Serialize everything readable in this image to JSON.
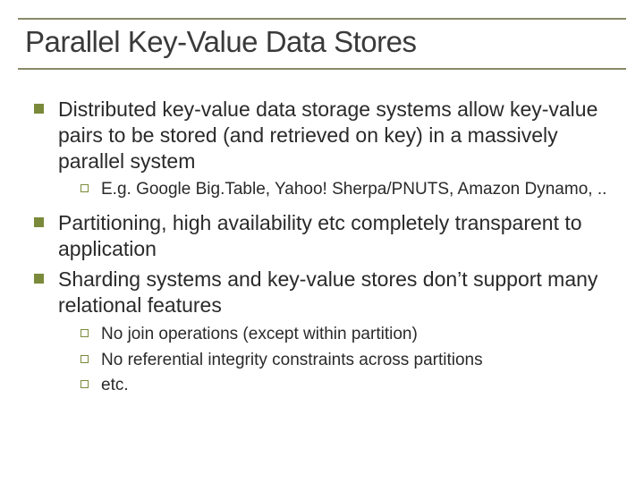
{
  "colors": {
    "text": "#2a2a2a",
    "title": "#3a3a3a",
    "bullet": "#7a8a3a",
    "border": "#8a8a6a",
    "background": "#ffffff"
  },
  "typography": {
    "title_fontsize": 33,
    "lvl1_fontsize": 23,
    "lvl2_fontsize": 19,
    "font_family": "Arial"
  },
  "layout": {
    "slide_width": 720,
    "slide_height": 540,
    "bullet_lvl1_size": 11,
    "bullet_lvl2_size": 9,
    "lvl2_indent": 52
  },
  "title": "Parallel Key-Value Data Stores",
  "bullets": [
    {
      "level": 1,
      "text": "Distributed key-value data storage systems allow key-value pairs to be stored (and retrieved on key) in a massively parallel system",
      "children": [
        {
          "level": 2,
          "text": "E.g. Google Big.Table, Yahoo! Sherpa/PNUTS, Amazon Dynamo, .."
        }
      ]
    },
    {
      "level": 1,
      "text": "Partitioning, high availability etc completely transparent to application",
      "children": []
    },
    {
      "level": 1,
      "text": "Sharding systems and key-value stores don’t support many relational features",
      "children": [
        {
          "level": 2,
          "text": "No join operations (except within partition)"
        },
        {
          "level": 2,
          "text": "No referential integrity constraints across partitions"
        },
        {
          "level": 2,
          "text": "etc."
        }
      ]
    }
  ]
}
